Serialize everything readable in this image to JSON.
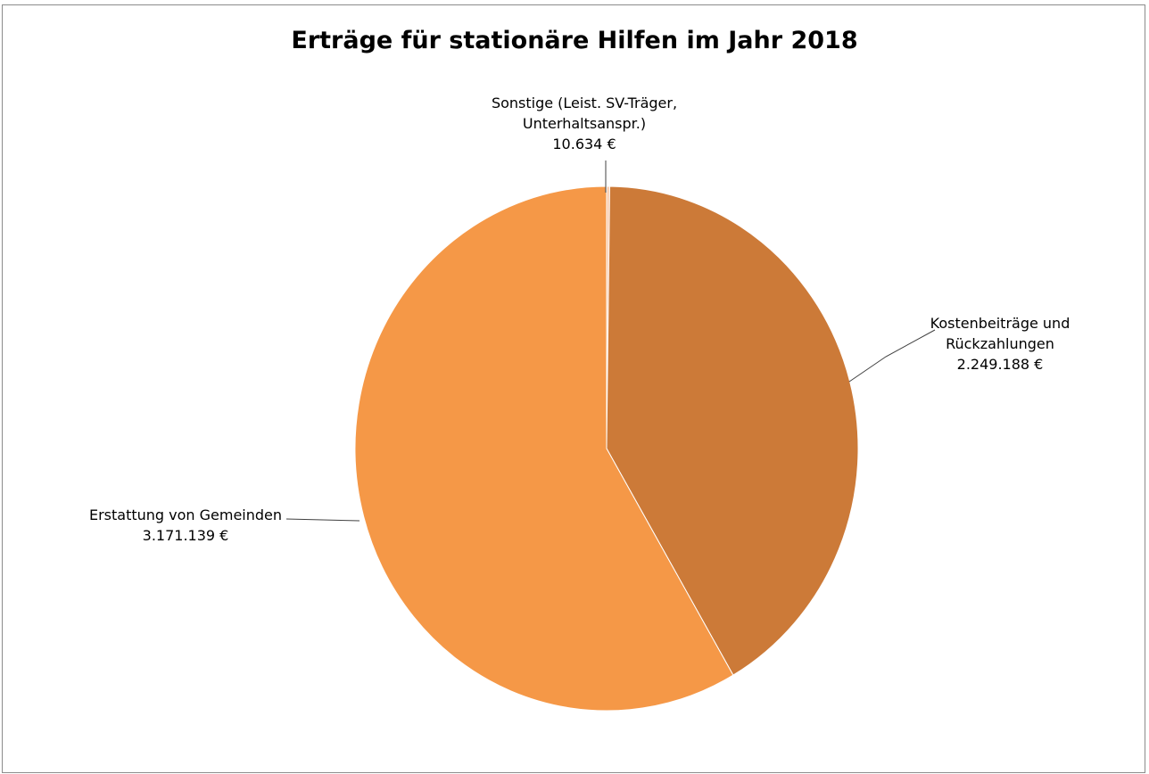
{
  "chart_data": {
    "type": "pie",
    "title": "Erträge für stationäre Hilfen im Jahr 2018",
    "start_angle_deg": 0,
    "direction": "clockwise",
    "slices": [
      {
        "label_lines": [
          "Sonstige (Leist. SV-Träger,",
          "Unterhaltsanspr.)"
        ],
        "value": 10634,
        "value_label": "10.634 €",
        "color": "#f8cbad"
      },
      {
        "label_lines": [
          "Kostenbeiträge und",
          "Rückzahlungen"
        ],
        "value": 2249188,
        "value_label": "2.249.188 €",
        "color": "#cc7a38"
      },
      {
        "label_lines": [
          "Erstattung von Gemeinden"
        ],
        "value": 3171139,
        "value_label": "3.171.139 €",
        "color": "#f59847"
      }
    ],
    "legend": "none",
    "data_labels": "outside-with-leader-lines"
  }
}
